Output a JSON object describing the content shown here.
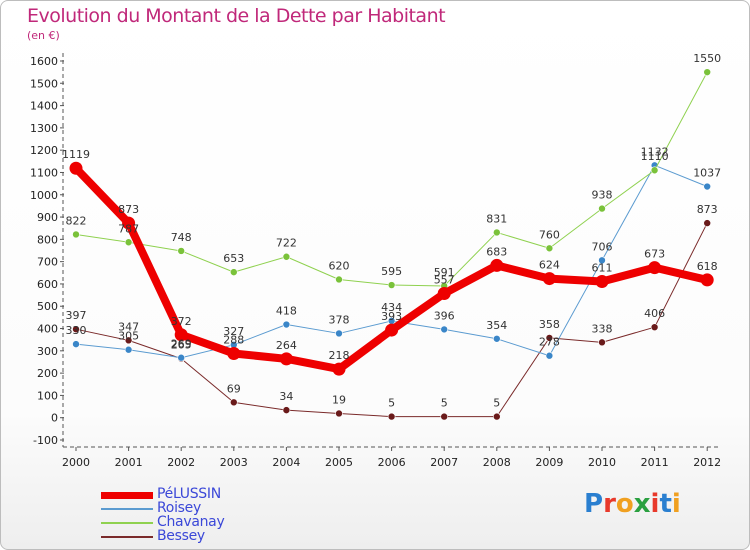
{
  "title": "Evolution du Montant de la Dette par Habitant",
  "subtitle": "(en €)",
  "logo": {
    "text": "Proxiti",
    "colors": [
      "#2a7fd0",
      "#e8392b",
      "#f0a020",
      "#2aa040",
      "#e8392b",
      "#2a7fd0",
      "#f0a020"
    ]
  },
  "chart_data": {
    "type": "line",
    "x": [
      "2000",
      "2001",
      "2002",
      "2003",
      "2004",
      "2005",
      "2006",
      "2007",
      "2008",
      "2009",
      "2010",
      "2011",
      "2012"
    ],
    "ylim": [
      -100,
      1600
    ],
    "yticks": [
      -100,
      0,
      100,
      200,
      300,
      400,
      500,
      600,
      700,
      800,
      900,
      1000,
      1100,
      1200,
      1300,
      1400,
      1500,
      1600
    ],
    "grid": false,
    "legend_position": "bottom-left",
    "series": [
      {
        "name": "Bessey",
        "color": "#7a2a2a",
        "marker": "#6a1a1a",
        "width": 1,
        "values": [
          397,
          347,
          265,
          69,
          34,
          19,
          5,
          5,
          5,
          358,
          338,
          406,
          873
        ]
      },
      {
        "name": "Roisey",
        "color": "#5b9bd0",
        "marker": "#3a86c8",
        "width": 1,
        "values": [
          330,
          305,
          269,
          327,
          418,
          378,
          434,
          396,
          354,
          278,
          706,
          1132,
          1037
        ]
      },
      {
        "name": "Chavanay",
        "color": "#8fd14f",
        "marker": "#7ac23a",
        "width": 1,
        "values": [
          822,
          787,
          748,
          653,
          722,
          620,
          595,
          591,
          831,
          760,
          938,
          1110,
          1550
        ]
      },
      {
        "name": "PéLUSSIN",
        "color": "#ee0000",
        "marker": "#ee0000",
        "width": 8,
        "values": [
          1119,
          873,
          372,
          288,
          264,
          218,
          393,
          557,
          683,
          624,
          611,
          673,
          618
        ]
      }
    ],
    "legend_order": [
      "PéLUSSIN",
      "Roisey",
      "Chavanay",
      "Bessey"
    ]
  }
}
